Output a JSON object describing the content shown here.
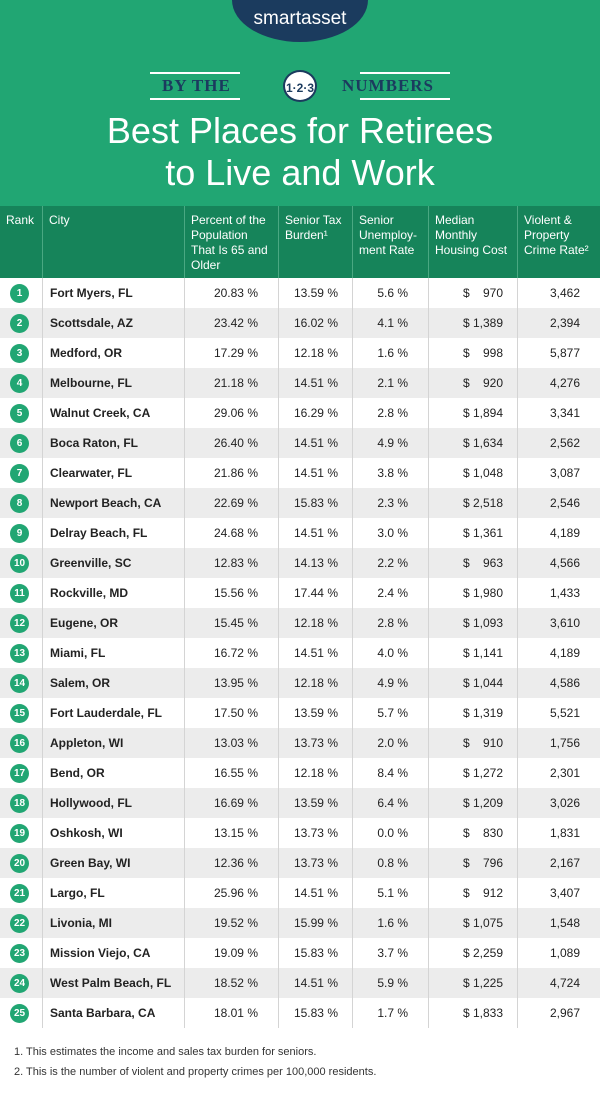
{
  "header": {
    "brand": "smartasset",
    "banner_left": "BY THE",
    "banner_badge": "1·2·3",
    "banner_right": "NUMBERS",
    "title_lines": [
      "Best Places for Retirees",
      "to Live and Work"
    ]
  },
  "table": {
    "columns": [
      "Rank",
      "City",
      "Percent of the Population That Is 65 and Older",
      "Senior Tax Burden¹",
      "Senior Unemploy-ment Rate",
      "Median Monthly Housing Cost",
      "Violent & Property Crime Rate²"
    ],
    "rows": [
      [
        "1",
        "Fort Myers, FL",
        "20.83 %",
        "13.59 %",
        "5.6 %",
        "$    970",
        "3,462"
      ],
      [
        "2",
        "Scottsdale, AZ",
        "23.42 %",
        "16.02 %",
        "4.1 %",
        "$ 1,389",
        "2,394"
      ],
      [
        "3",
        "Medford, OR",
        "17.29 %",
        "12.18 %",
        "1.6 %",
        "$    998",
        "5,877"
      ],
      [
        "4",
        "Melbourne, FL",
        "21.18 %",
        "14.51 %",
        "2.1 %",
        "$    920",
        "4,276"
      ],
      [
        "5",
        "Walnut Creek, CA",
        "29.06 %",
        "16.29 %",
        "2.8 %",
        "$ 1,894",
        "3,341"
      ],
      [
        "6",
        "Boca Raton, FL",
        "26.40 %",
        "14.51 %",
        "4.9 %",
        "$ 1,634",
        "2,562"
      ],
      [
        "7",
        "Clearwater, FL",
        "21.86 %",
        "14.51 %",
        "3.8 %",
        "$ 1,048",
        "3,087"
      ],
      [
        "8",
        "Newport Beach, CA",
        "22.69 %",
        "15.83 %",
        "2.3 %",
        "$ 2,518",
        "2,546"
      ],
      [
        "9",
        "Delray Beach, FL",
        "24.68 %",
        "14.51 %",
        "3.0 %",
        "$ 1,361",
        "4,189"
      ],
      [
        "10",
        "Greenville, SC",
        "12.83 %",
        "14.13 %",
        "2.2 %",
        "$    963",
        "4,566"
      ],
      [
        "11",
        "Rockville, MD",
        "15.56 %",
        "17.44 %",
        "2.4 %",
        "$ 1,980",
        "1,433"
      ],
      [
        "12",
        "Eugene, OR",
        "15.45 %",
        "12.18 %",
        "2.8 %",
        "$ 1,093",
        "3,610"
      ],
      [
        "13",
        "Miami, FL",
        "16.72 %",
        "14.51 %",
        "4.0 %",
        "$ 1,141",
        "4,189"
      ],
      [
        "14",
        "Salem, OR",
        "13.95 %",
        "12.18 %",
        "4.9 %",
        "$ 1,044",
        "4,586"
      ],
      [
        "15",
        "Fort Lauderdale, FL",
        "17.50 %",
        "13.59 %",
        "5.7 %",
        "$ 1,319",
        "5,521"
      ],
      [
        "16",
        "Appleton, WI",
        "13.03 %",
        "13.73 %",
        "2.0 %",
        "$    910",
        "1,756"
      ],
      [
        "17",
        "Bend, OR",
        "16.55 %",
        "12.18 %",
        "8.4 %",
        "$ 1,272",
        "2,301"
      ],
      [
        "18",
        "Hollywood, FL",
        "16.69 %",
        "13.59 %",
        "6.4 %",
        "$ 1,209",
        "3,026"
      ],
      [
        "19",
        "Oshkosh, WI",
        "13.15 %",
        "13.73 %",
        "0.0 %",
        "$    830",
        "1,831"
      ],
      [
        "20",
        "Green Bay, WI",
        "12.36 %",
        "13.73 %",
        "0.8 %",
        "$    796",
        "2,167"
      ],
      [
        "21",
        "Largo, FL",
        "25.96 %",
        "14.51 %",
        "5.1 %",
        "$    912",
        "3,407"
      ],
      [
        "22",
        "Livonia, MI",
        "19.52 %",
        "15.99 %",
        "1.6 %",
        "$ 1,075",
        "1,548"
      ],
      [
        "23",
        "Mission Viejo, CA",
        "19.09 %",
        "15.83 %",
        "3.7 %",
        "$ 2,259",
        "1,089"
      ],
      [
        "24",
        "West Palm Beach, FL",
        "18.52 %",
        "14.51 %",
        "5.9 %",
        "$ 1,225",
        "4,724"
      ],
      [
        "25",
        "Santa Barbara, CA",
        "18.01 %",
        "15.83 %",
        "1.7 %",
        "$ 1,833",
        "2,967"
      ]
    ]
  },
  "footnotes": [
    "1.  This estimates the income and sales tax burden for seniors.",
    "2.  This is the number of violent and property crimes per 100,000 residents."
  ]
}
